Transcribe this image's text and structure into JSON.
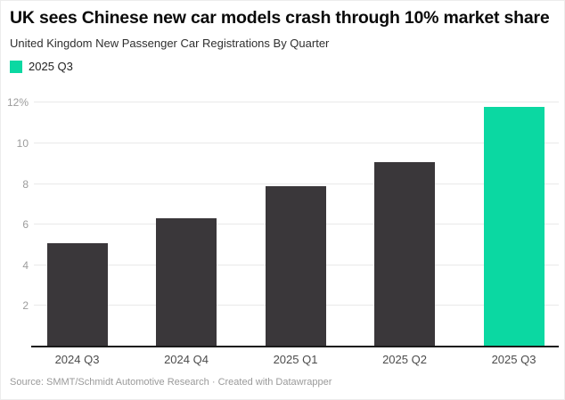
{
  "header": {
    "title": "UK sees Chinese new car models crash through 10% market share",
    "subtitle": "United Kingdom New Passenger Car Registrations By Quarter"
  },
  "legend": {
    "label": "2025 Q3",
    "color": "#0bd8a2"
  },
  "chart_data": {
    "type": "bar",
    "title": "UK sees Chinese new car models crash through 10% market share",
    "subtitle": "United Kingdom New Passenger Car Registrations By Quarter",
    "categories": [
      "2024 Q3",
      "2024 Q4",
      "2025 Q1",
      "2025 Q2",
      "2025 Q3"
    ],
    "values": [
      5.1,
      6.3,
      7.9,
      9.1,
      11.8
    ],
    "unit": "%",
    "xlabel": "",
    "ylabel": "",
    "ylim": [
      0,
      12.6
    ],
    "yticks": [
      {
        "value": 2,
        "label": "2"
      },
      {
        "value": 4,
        "label": "4"
      },
      {
        "value": 6,
        "label": "6"
      },
      {
        "value": 8,
        "label": "8"
      },
      {
        "value": 10,
        "label": "10"
      },
      {
        "value": 12,
        "label": "12%"
      }
    ],
    "grid": "horizontal",
    "legend_position": "top-left",
    "legend_entries": [
      {
        "label": "2025 Q3",
        "color": "#0bd8a2"
      }
    ],
    "bar_color": "#3a373a",
    "highlight_index": 4,
    "highlight_color": "#0bd8a2",
    "axis_line_color": "#1a1a1a"
  },
  "footer": {
    "source_label": "Source:",
    "source_value": "SMMT/Schmidt Automotive Research",
    "separator": "·",
    "credit": "Created with Datawrapper"
  }
}
